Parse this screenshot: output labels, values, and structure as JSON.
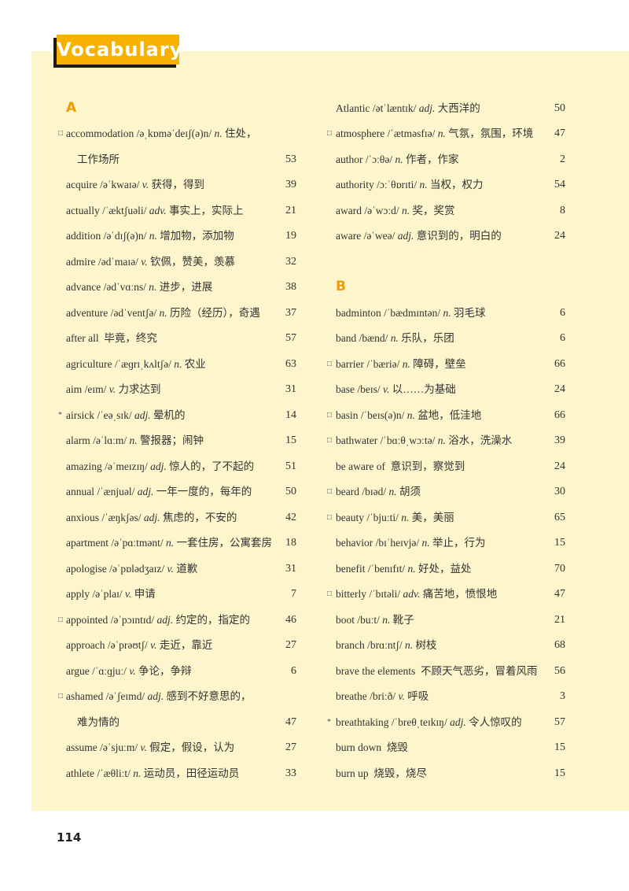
{
  "header": {
    "title": "Vocabulary"
  },
  "columns": [
    [
      {
        "letter": "A",
        "entries": [
          {
            "marker": "□",
            "word": "accommodation",
            "ipa": "/əˌkɒməˈdeɪʃ(ə)n/",
            "pos": "n.",
            "gloss": "住处，",
            "gloss_cont": "工作场所",
            "page": 53
          },
          {
            "word": "acquire",
            "ipa": "/əˈkwaɪə/",
            "pos": "v.",
            "gloss": "获得，得到",
            "page": 39
          },
          {
            "word": "actually",
            "ipa": "/ˈæktʃuəli/",
            "pos": "adv.",
            "gloss": "事实上，实际上",
            "page": 21
          },
          {
            "word": "addition",
            "ipa": "/əˈdɪʃ(ə)n/",
            "pos": "n.",
            "gloss": "增加物，添加物",
            "page": 19
          },
          {
            "word": "admire",
            "ipa": "/ədˈmaɪə/",
            "pos": "v.",
            "gloss": "钦佩，赞美，羡慕",
            "page": 32
          },
          {
            "word": "advance",
            "ipa": "/ədˈvɑːns/",
            "pos": "n.",
            "gloss": "进步，进展",
            "page": 38
          },
          {
            "word": "adventure",
            "ipa": "/ədˈventʃə/",
            "pos": "n.",
            "gloss": "历险（经历），奇遇",
            "page": 37
          },
          {
            "word": "after all",
            "gloss": "毕竟，终究",
            "page": 57
          },
          {
            "word": "agriculture",
            "ipa": "/ˈæɡrɪˌkʌltʃə/",
            "pos": "n.",
            "gloss": "农业",
            "page": 63
          },
          {
            "word": "aim",
            "ipa": "/eɪm/",
            "pos": "v.",
            "gloss": "力求达到",
            "page": 31
          },
          {
            "marker": "*",
            "word": "airsick",
            "ipa": "/ˈeəˌsɪk/",
            "pos": "adj.",
            "gloss": "晕机的",
            "page": 14
          },
          {
            "word": "alarm",
            "ipa": "/əˈlɑːm/",
            "pos": "n.",
            "gloss": "警报器；闹钟",
            "page": 15
          },
          {
            "word": "amazing",
            "ipa": "/əˈmeɪzɪŋ/",
            "pos": "adj.",
            "gloss": "惊人的，了不起的",
            "page": 51
          },
          {
            "word": "annual",
            "ipa": "/ˈænjuəl/",
            "pos": "adj.",
            "gloss": "一年一度的，每年的",
            "page": 50
          },
          {
            "word": "anxious",
            "ipa": "/ˈæŋkʃəs/",
            "pos": "adj.",
            "gloss": "焦虑的，不安的",
            "page": 42
          },
          {
            "word": "apartment",
            "ipa": "/əˈpɑːtmənt/",
            "pos": "n.",
            "gloss": "一套住房，公寓套房",
            "page": 18
          },
          {
            "word": "apologise",
            "ipa": "/əˈpɒlədʒaɪz/",
            "pos": "v.",
            "gloss": "道歉",
            "page": 31
          },
          {
            "word": "apply",
            "ipa": "/əˈplaɪ/",
            "pos": "v.",
            "gloss": "申请",
            "page": 7
          },
          {
            "marker": "□",
            "word": "appointed",
            "ipa": "/əˈpɔɪntɪd/",
            "pos": "adj.",
            "gloss": "约定的，指定的",
            "page": 46
          },
          {
            "word": "approach",
            "ipa": "/əˈprəʊtʃ/",
            "pos": "v.",
            "gloss": "走近，靠近",
            "page": 27
          },
          {
            "word": "argue",
            "ipa": "/ˈɑːɡjuː/",
            "pos": "v.",
            "gloss": "争论，争辩",
            "page": 6
          },
          {
            "marker": "□",
            "word": "ashamed",
            "ipa": "/əˈʃeɪmd/",
            "pos": "adj.",
            "gloss": "感到不好意思的，",
            "gloss_cont": "难为情的",
            "page": 47
          },
          {
            "word": "assume",
            "ipa": "/əˈsjuːm/",
            "pos": "v.",
            "gloss": "假定，假设，认为",
            "page": 27
          },
          {
            "word": "athlete",
            "ipa": "/ˈæθliːt/",
            "pos": "n.",
            "gloss": "运动员，田径运动员",
            "page": 33
          }
        ]
      }
    ],
    [
      {
        "entries": [
          {
            "word": "Atlantic",
            "ipa": "/ətˈlæntɪk/",
            "pos": "adj.",
            "gloss": "大西洋的",
            "page": 50
          },
          {
            "marker": "□",
            "word": "atmosphere",
            "ipa": "/ˈætməsfɪə/",
            "pos": "n.",
            "gloss": "气氛，氛围，环境",
            "page": 47
          },
          {
            "word": "author",
            "ipa": "/ˈɔːθə/",
            "pos": "n.",
            "gloss": "作者，作家",
            "page": 2
          },
          {
            "word": "authority",
            "ipa": "/ɔːˈθɒrɪti/",
            "pos": "n.",
            "gloss": "当权，权力",
            "page": 54
          },
          {
            "word": "award",
            "ipa": "/əˈwɔːd/",
            "pos": "n.",
            "gloss": "奖，奖赏",
            "page": 8
          },
          {
            "word": "aware",
            "ipa": "/əˈweə/",
            "pos": "adj.",
            "gloss": "意识到的，明白的",
            "page": 24
          }
        ]
      },
      {
        "letter": "B",
        "entries": [
          {
            "word": "badminton",
            "ipa": "/ˈbædmɪntən/",
            "pos": "n.",
            "gloss": "羽毛球",
            "page": 6
          },
          {
            "word": "band",
            "ipa": "/bænd/",
            "pos": "n.",
            "gloss": "乐队，乐团",
            "page": 6
          },
          {
            "marker": "□",
            "word": "barrier",
            "ipa": "/ˈbæriə/",
            "pos": "n.",
            "gloss": "障碍，壁垒",
            "page": 66
          },
          {
            "word": "base",
            "ipa": "/beɪs/",
            "pos": "v.",
            "gloss": "以……为基础",
            "page": 24
          },
          {
            "marker": "□",
            "word": "basin",
            "ipa": "/ˈbeɪs(ə)n/",
            "pos": "n.",
            "gloss": "盆地，低洼地",
            "page": 66
          },
          {
            "marker": "□",
            "word": "bathwater",
            "ipa": "/ˈbɑːθˌwɔːtə/",
            "pos": "n.",
            "gloss": "浴水，洗澡水",
            "page": 39
          },
          {
            "word": "be aware of",
            "gloss": "意识到，察觉到",
            "page": 24
          },
          {
            "marker": "□",
            "word": "beard",
            "ipa": "/bɪəd/",
            "pos": "n.",
            "gloss": "胡须",
            "page": 30
          },
          {
            "marker": "□",
            "word": "beauty",
            "ipa": "/ˈbjuːti/",
            "pos": "n.",
            "gloss": "美，美丽",
            "page": 65
          },
          {
            "word": "behavior",
            "ipa": "/bɪˈheɪvjə/",
            "pos": "n.",
            "gloss": "举止，行为",
            "page": 15
          },
          {
            "word": "benefit",
            "ipa": "/ˈbenɪfɪt/",
            "pos": "n.",
            "gloss": "好处，益处",
            "page": 70
          },
          {
            "marker": "□",
            "word": "bitterly",
            "ipa": "/ˈbɪtəli/",
            "pos": "adv.",
            "gloss": "痛苦地，愤恨地",
            "page": 47
          },
          {
            "word": "boot",
            "ipa": "/buːt/",
            "pos": "n.",
            "gloss": "靴子",
            "page": 21
          },
          {
            "word": "branch",
            "ipa": "/brɑːntʃ/",
            "pos": "n.",
            "gloss": "树枝",
            "page": 68
          },
          {
            "word": "brave the elements",
            "gloss": "不顾天气恶劣，冒着风雨",
            "page": 56
          },
          {
            "word": "breathe",
            "ipa": "/briːð/",
            "pos": "v.",
            "gloss": "呼吸",
            "page": 3
          },
          {
            "marker": "*",
            "word": "breathtaking",
            "ipa": "/ˈbreθˌteɪkɪŋ/",
            "pos": "adj.",
            "gloss": "令人惊叹的",
            "page": 57
          },
          {
            "word": "burn down",
            "gloss": "烧毁",
            "page": 15
          },
          {
            "word": "burn up",
            "gloss": "烧毁，烧尽",
            "page": 15
          }
        ]
      }
    ]
  ],
  "footer": {
    "page_number": "114"
  }
}
